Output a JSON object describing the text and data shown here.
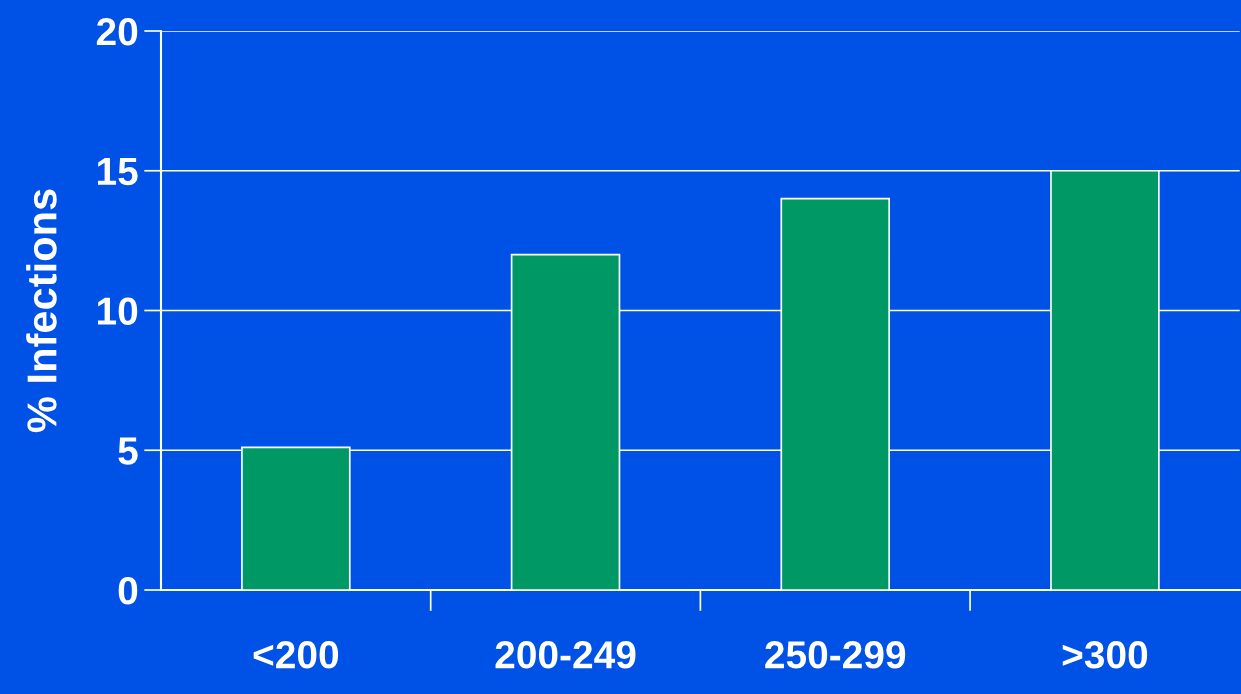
{
  "chart_data": {
    "type": "bar",
    "ylabel": "% Infections",
    "categories": [
      "<200",
      "200-249",
      "250-299",
      ">300"
    ],
    "values": [
      5.1,
      12,
      14,
      15
    ],
    "color": "#009966",
    "ylim": [
      0,
      20
    ],
    "yticks": [
      0,
      5,
      10,
      15,
      20
    ],
    "grid": "y"
  }
}
